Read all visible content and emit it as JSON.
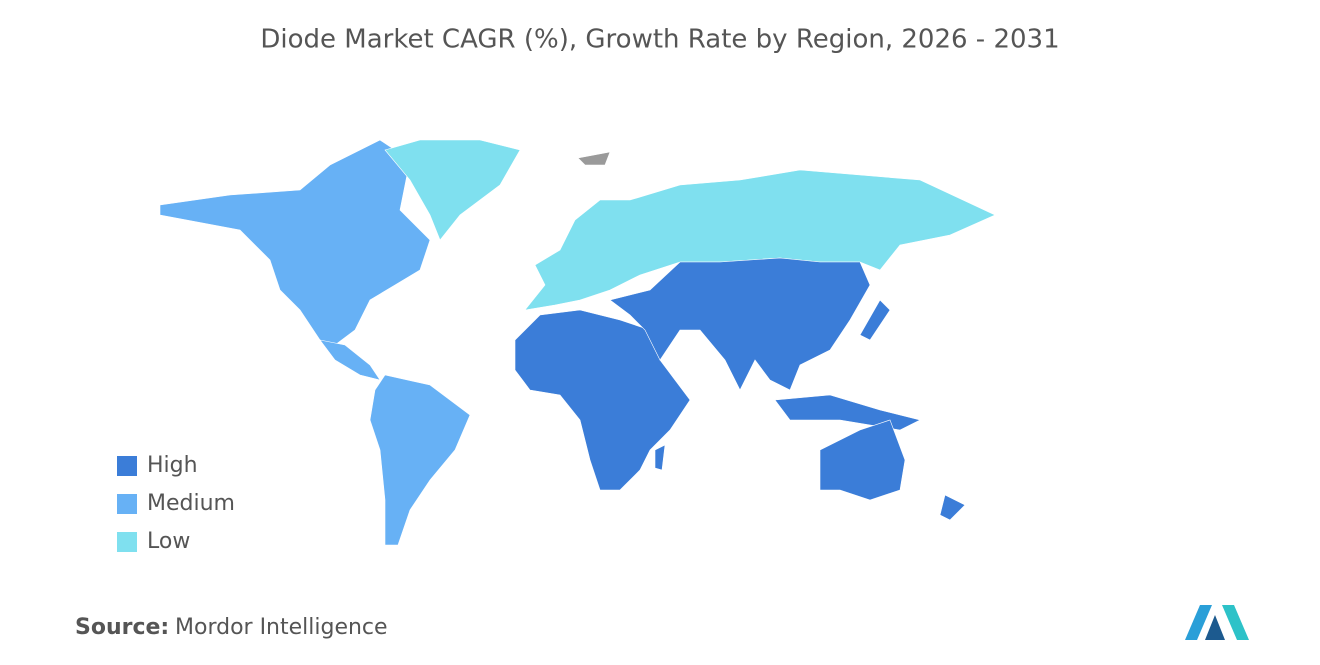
{
  "title": "Diode Market CAGR (%), Growth Rate by Region, 2026 - 2031",
  "legend": [
    {
      "label": "High",
      "color": "#3b7dd8"
    },
    {
      "label": "Medium",
      "color": "#67b1f5"
    },
    {
      "label": "Low",
      "color": "#7fe0ef"
    }
  ],
  "source": {
    "label": "Source:",
    "text": "Mordor Intelligence"
  }
}
